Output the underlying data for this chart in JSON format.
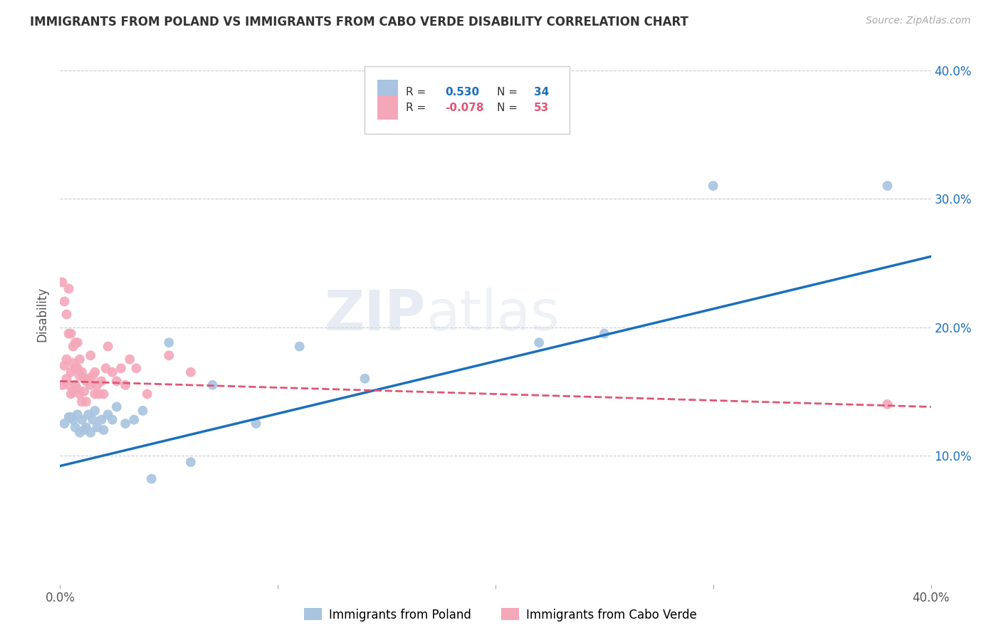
{
  "title": "IMMIGRANTS FROM POLAND VS IMMIGRANTS FROM CABO VERDE DISABILITY CORRELATION CHART",
  "source": "Source: ZipAtlas.com",
  "ylabel": "Disability",
  "xlim": [
    0.0,
    0.4
  ],
  "ylim": [
    0.0,
    0.42
  ],
  "xticks": [
    0.0,
    0.1,
    0.2,
    0.3,
    0.4
  ],
  "yticks": [
    0.1,
    0.2,
    0.3,
    0.4
  ],
  "ytick_labels": [
    "10.0%",
    "20.0%",
    "30.0%",
    "40.0%"
  ],
  "xtick_labels": [
    "0.0%",
    "",
    "",
    "",
    "40.0%"
  ],
  "poland_color": "#a8c4e0",
  "caboverde_color": "#f4a7b9",
  "poland_line_color": "#1a6fbd",
  "caboverde_line_color": "#e05575",
  "legend_poland_label": "Immigrants from Poland",
  "legend_caboverde_label": "Immigrants from Cabo Verde",
  "background_color": "#ffffff",
  "poland_line_x0": 0.0,
  "poland_line_y0": 0.092,
  "poland_line_x1": 0.4,
  "poland_line_y1": 0.255,
  "caboverde_line_x0": 0.0,
  "caboverde_line_y0": 0.158,
  "caboverde_line_x1": 0.4,
  "caboverde_line_y1": 0.138,
  "poland_x": [
    0.002,
    0.004,
    0.005,
    0.006,
    0.007,
    0.008,
    0.009,
    0.01,
    0.011,
    0.012,
    0.013,
    0.014,
    0.015,
    0.016,
    0.017,
    0.019,
    0.02,
    0.022,
    0.024,
    0.026,
    0.03,
    0.034,
    0.038,
    0.042,
    0.05,
    0.06,
    0.07,
    0.09,
    0.11,
    0.14,
    0.22,
    0.25,
    0.3,
    0.38
  ],
  "poland_y": [
    0.125,
    0.13,
    0.13,
    0.128,
    0.122,
    0.132,
    0.118,
    0.128,
    0.12,
    0.122,
    0.132,
    0.118,
    0.128,
    0.135,
    0.122,
    0.128,
    0.12,
    0.132,
    0.128,
    0.138,
    0.125,
    0.128,
    0.135,
    0.082,
    0.188,
    0.095,
    0.155,
    0.125,
    0.185,
    0.16,
    0.188,
    0.195,
    0.31,
    0.31
  ],
  "caboverde_x": [
    0.001,
    0.001,
    0.002,
    0.002,
    0.003,
    0.003,
    0.003,
    0.004,
    0.004,
    0.004,
    0.005,
    0.005,
    0.005,
    0.006,
    0.006,
    0.006,
    0.007,
    0.007,
    0.007,
    0.008,
    0.008,
    0.008,
    0.009,
    0.009,
    0.009,
    0.01,
    0.01,
    0.011,
    0.011,
    0.012,
    0.012,
    0.013,
    0.014,
    0.014,
    0.015,
    0.016,
    0.016,
    0.017,
    0.018,
    0.019,
    0.02,
    0.021,
    0.022,
    0.024,
    0.026,
    0.028,
    0.03,
    0.032,
    0.035,
    0.04,
    0.05,
    0.06,
    0.38
  ],
  "caboverde_y": [
    0.155,
    0.235,
    0.17,
    0.22,
    0.16,
    0.175,
    0.21,
    0.155,
    0.195,
    0.23,
    0.148,
    0.165,
    0.195,
    0.15,
    0.172,
    0.185,
    0.155,
    0.168,
    0.188,
    0.152,
    0.168,
    0.188,
    0.148,
    0.162,
    0.175,
    0.142,
    0.165,
    0.15,
    0.16,
    0.142,
    0.158,
    0.16,
    0.155,
    0.178,
    0.162,
    0.148,
    0.165,
    0.155,
    0.148,
    0.158,
    0.148,
    0.168,
    0.185,
    0.165,
    0.158,
    0.168,
    0.155,
    0.175,
    0.168,
    0.148,
    0.178,
    0.165,
    0.14
  ]
}
